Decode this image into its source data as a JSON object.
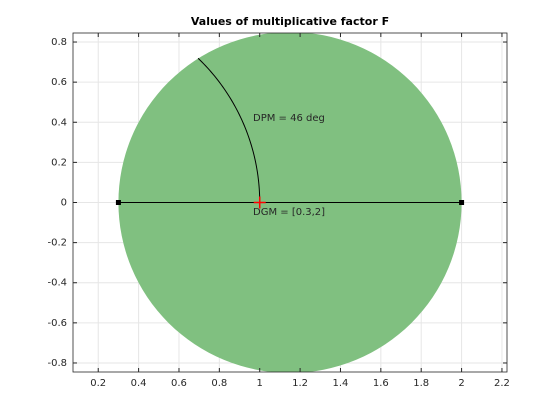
{
  "chart_data": {
    "type": "disk-margin",
    "title": "Values of multiplicative factor F",
    "xlim": [
      0.075,
      2.225
    ],
    "ylim": [
      -0.845,
      0.845
    ],
    "xticks": [
      0.2,
      0.4,
      0.6,
      0.8,
      1,
      1.2,
      1.4,
      1.6,
      1.8,
      2,
      2.2
    ],
    "yticks": [
      -0.8,
      -0.6,
      -0.4,
      -0.2,
      0,
      0.2,
      0.4,
      0.6,
      0.8
    ],
    "grid": true,
    "disk": {
      "x": [
        0.3,
        2
      ],
      "color": "#80c080"
    },
    "gain_line": {
      "x": [
        0.3,
        2
      ],
      "y": [
        0,
        0
      ],
      "color": "#000000"
    },
    "nominal_point": {
      "x": 1,
      "y": 0,
      "color": "#ff0000"
    },
    "phase_arc": {
      "angle_deg": 46,
      "color": "#000000"
    },
    "annotations": [
      "DPM = 46 deg",
      "DGM = [0.3,2]"
    ]
  }
}
